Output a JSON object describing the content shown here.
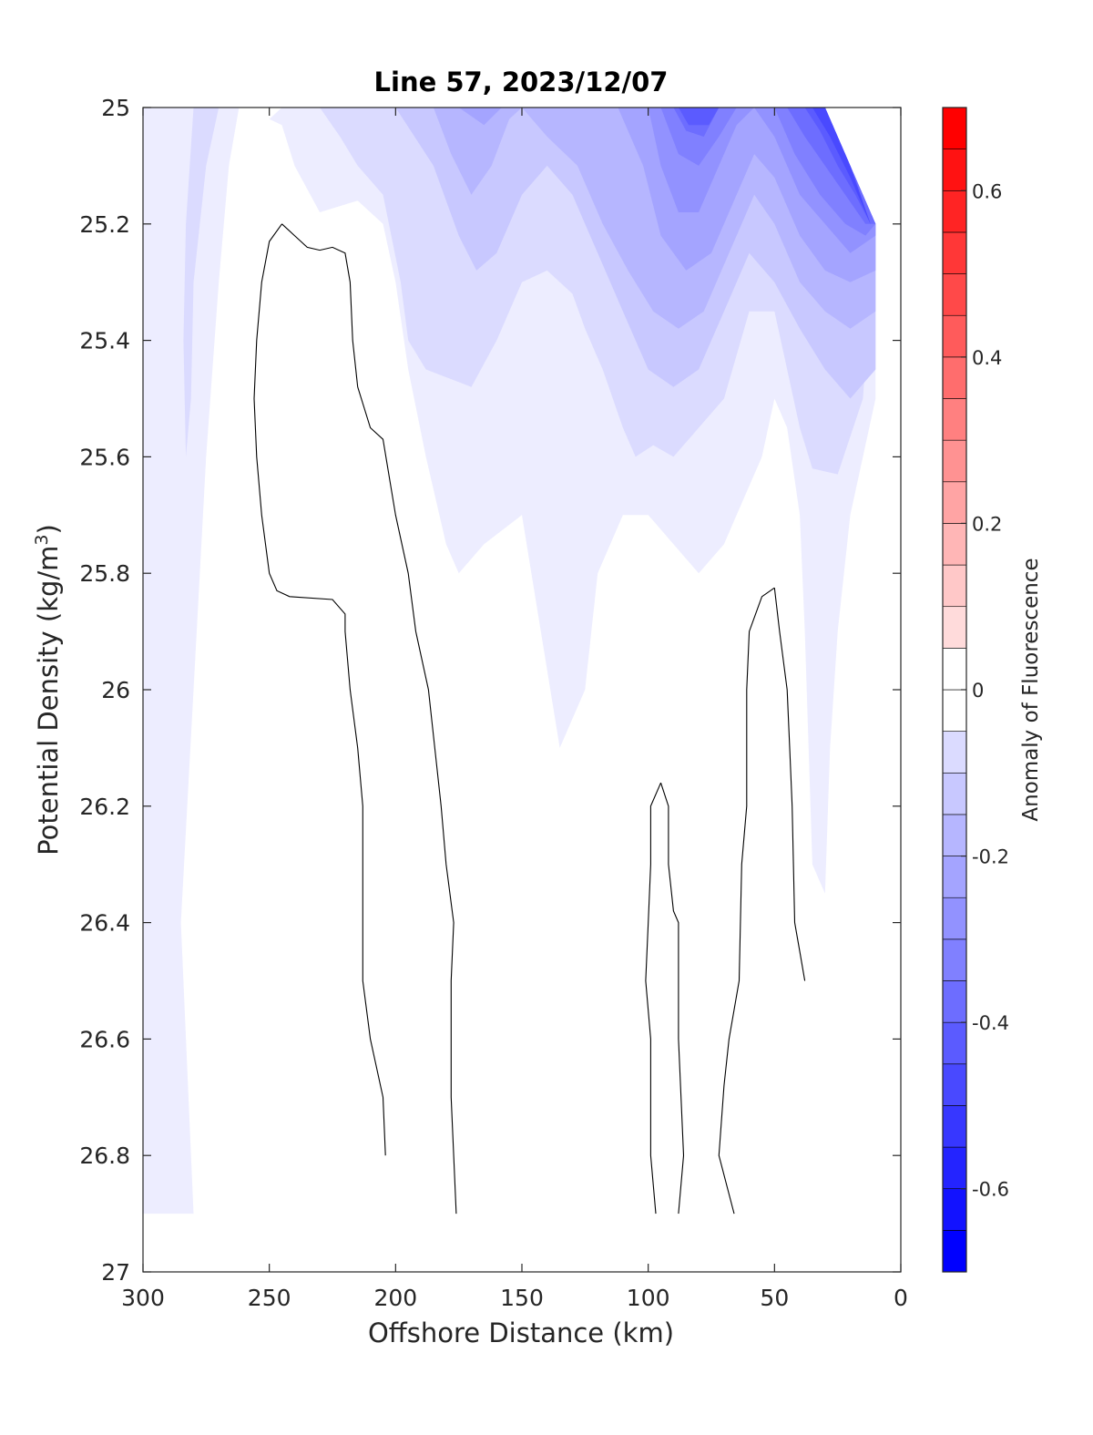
{
  "chart_data": {
    "type": "contourf",
    "title": "Line 57, 2023/12/07",
    "xlabel": "Offshore Distance (km)",
    "ylabel": "Potential Density (kg/m",
    "ylabel_sup": "3",
    "ylabel_close": ")",
    "colorbar_label": "Anomaly of Fluorescence",
    "x_axis": {
      "range": [
        300,
        0
      ],
      "reversed": true,
      "ticks": [
        300,
        250,
        200,
        150,
        100,
        50,
        0
      ],
      "tick_labels": [
        "300",
        "250",
        "200",
        "150",
        "100",
        "50",
        "0"
      ]
    },
    "y_axis": {
      "range": [
        25,
        27
      ],
      "reversed": true,
      "ticks": [
        25,
        25.2,
        25.4,
        25.6,
        25.8,
        26,
        26.2,
        26.4,
        26.6,
        26.8,
        27
      ],
      "tick_labels": [
        "25",
        "25.2",
        "25.4",
        "25.6",
        "25.8",
        "26",
        "26.2",
        "26.4",
        "26.6",
        "26.8",
        "27"
      ]
    },
    "colorbar": {
      "range": [
        -0.7,
        0.7
      ],
      "levels": [
        -0.7,
        -0.65,
        -0.6,
        -0.55,
        -0.5,
        -0.45,
        -0.4,
        -0.35,
        -0.3,
        -0.25,
        -0.2,
        -0.15,
        -0.1,
        -0.05,
        0,
        0.05,
        0.1,
        0.15,
        0.2,
        0.25,
        0.3,
        0.35,
        0.4,
        0.45,
        0.5,
        0.55,
        0.6,
        0.65,
        0.7
      ],
      "ticks": [
        -0.6,
        -0.4,
        -0.2,
        0,
        0.2,
        0.4,
        0.6
      ],
      "tick_labels": [
        "-0.6",
        "-0.4",
        "-0.2",
        "0",
        "0.2",
        "0.4",
        "0.6"
      ],
      "colormap": "blue-white-red"
    },
    "filled_regions": [
      {
        "level": -0.05,
        "points": [
          [
            285,
            25
          ],
          [
            262,
            25
          ],
          [
            266,
            25.1
          ],
          [
            270,
            25.3
          ],
          [
            275,
            25.6
          ],
          [
            280,
            26
          ],
          [
            285,
            26.4
          ],
          [
            280,
            26.9
          ],
          [
            300,
            26.9
          ],
          [
            300,
            25
          ]
        ]
      },
      {
        "level": -0.05,
        "points": [
          [
            250,
            25.02
          ],
          [
            245,
            25.03
          ],
          [
            240,
            25.1
          ],
          [
            230,
            25.18
          ],
          [
            215,
            25.16
          ],
          [
            205,
            25.2
          ],
          [
            200,
            25.3
          ],
          [
            195,
            25.45
          ],
          [
            188,
            25.6
          ],
          [
            180,
            25.75
          ],
          [
            175,
            25.8
          ],
          [
            165,
            25.75
          ],
          [
            150,
            25.7
          ],
          [
            135,
            26.1
          ],
          [
            125,
            26
          ],
          [
            120,
            25.8
          ],
          [
            110,
            25.7
          ],
          [
            100,
            25.7
          ],
          [
            90,
            25.75
          ],
          [
            80,
            25.8
          ],
          [
            70,
            25.75
          ],
          [
            65,
            25.7
          ],
          [
            55,
            25.6
          ],
          [
            50,
            25.5
          ],
          [
            45,
            25.55
          ],
          [
            40,
            25.7
          ],
          [
            38,
            25.9
          ],
          [
            35,
            26.3
          ],
          [
            30,
            26.35
          ],
          [
            28,
            26.1
          ],
          [
            25,
            25.9
          ],
          [
            20,
            25.7
          ],
          [
            15,
            25.6
          ],
          [
            10,
            25.5
          ],
          [
            10,
            25.2
          ],
          [
            20,
            25.1
          ],
          [
            30,
            25
          ],
          [
            245,
            25
          ]
        ]
      },
      {
        "level": -0.1,
        "points": [
          [
            270,
            25
          ],
          [
            280,
            25
          ],
          [
            283,
            25.2
          ],
          [
            284,
            25.4
          ],
          [
            283,
            25.6
          ],
          [
            281,
            25.5
          ],
          [
            280,
            25.3
          ],
          [
            275,
            25.1
          ]
        ]
      },
      {
        "level": -0.1,
        "points": [
          [
            230,
            25
          ],
          [
            222,
            25.05
          ],
          [
            215,
            25.1
          ],
          [
            205,
            25.15
          ],
          [
            198,
            25.3
          ],
          [
            195,
            25.4
          ],
          [
            188,
            25.45
          ],
          [
            170,
            25.48
          ],
          [
            160,
            25.4
          ],
          [
            155,
            25.35
          ],
          [
            150,
            25.3
          ],
          [
            140,
            25.28
          ],
          [
            130,
            25.32
          ],
          [
            125,
            25.38
          ],
          [
            118,
            25.45
          ],
          [
            110,
            25.55
          ],
          [
            105,
            25.6
          ],
          [
            98,
            25.58
          ],
          [
            90,
            25.6
          ],
          [
            80,
            25.55
          ],
          [
            70,
            25.5
          ],
          [
            60,
            25.35
          ],
          [
            50,
            25.35
          ],
          [
            45,
            25.45
          ],
          [
            40,
            25.55
          ],
          [
            35,
            25.62
          ],
          [
            25,
            25.63
          ],
          [
            15,
            25.5
          ],
          [
            10,
            25.2
          ],
          [
            20,
            25.1
          ],
          [
            30,
            25
          ]
        ]
      },
      {
        "level": -0.15,
        "points": [
          [
            200,
            25
          ],
          [
            185,
            25.1
          ],
          [
            175,
            25.22
          ],
          [
            168,
            25.28
          ],
          [
            160,
            25.25
          ],
          [
            150,
            25.15
          ],
          [
            140,
            25.1
          ],
          [
            130,
            25.15
          ],
          [
            120,
            25.25
          ],
          [
            110,
            25.35
          ],
          [
            100,
            25.45
          ],
          [
            90,
            25.48
          ],
          [
            80,
            25.45
          ],
          [
            70,
            25.35
          ],
          [
            60,
            25.25
          ],
          [
            50,
            25.3
          ],
          [
            40,
            25.38
          ],
          [
            30,
            25.45
          ],
          [
            20,
            25.5
          ],
          [
            10,
            25.45
          ],
          [
            10,
            25.2
          ],
          [
            20,
            25.1
          ],
          [
            30,
            25
          ]
        ]
      },
      {
        "level": -0.2,
        "points": [
          [
            185,
            25
          ],
          [
            178,
            25.08
          ],
          [
            170,
            25.15
          ],
          [
            162,
            25.1
          ],
          [
            155,
            25.02
          ],
          [
            150,
            25
          ],
          [
            140,
            25.05
          ],
          [
            128,
            25.1
          ],
          [
            118,
            25.2
          ],
          [
            108,
            25.28
          ],
          [
            98,
            25.35
          ],
          [
            88,
            25.38
          ],
          [
            78,
            25.35
          ],
          [
            68,
            25.25
          ],
          [
            58,
            25.15
          ],
          [
            50,
            25.2
          ],
          [
            40,
            25.3
          ],
          [
            30,
            25.35
          ],
          [
            20,
            25.38
          ],
          [
            10,
            25.35
          ],
          [
            10,
            25.2
          ],
          [
            20,
            25.1
          ],
          [
            30,
            25
          ]
        ]
      },
      {
        "level": -0.25,
        "points": [
          [
            175,
            25
          ],
          [
            165,
            25.03
          ],
          [
            158,
            25
          ],
          [
            112,
            25
          ],
          [
            102,
            25.1
          ],
          [
            95,
            25.22
          ],
          [
            85,
            25.28
          ],
          [
            75,
            25.25
          ],
          [
            65,
            25.15
          ],
          [
            58,
            25.08
          ],
          [
            50,
            25.12
          ],
          [
            40,
            25.22
          ],
          [
            30,
            25.28
          ],
          [
            20,
            25.3
          ],
          [
            10,
            25.28
          ],
          [
            10,
            25.2
          ],
          [
            20,
            25.1
          ],
          [
            30,
            25
          ]
        ]
      },
      {
        "level": -0.3,
        "points": [
          [
            100,
            25
          ],
          [
            95,
            25.1
          ],
          [
            88,
            25.18
          ],
          [
            80,
            25.18
          ],
          [
            72,
            25.1
          ],
          [
            65,
            25.03
          ],
          [
            58,
            25
          ],
          [
            50,
            25.05
          ],
          [
            40,
            25.15
          ],
          [
            30,
            25.2
          ],
          [
            20,
            25.25
          ],
          [
            10,
            25.22
          ],
          [
            10,
            25.2
          ],
          [
            20,
            25.1
          ],
          [
            30,
            25
          ]
        ]
      },
      {
        "level": -0.35,
        "points": [
          [
            95,
            25
          ],
          [
            88,
            25.08
          ],
          [
            80,
            25.1
          ],
          [
            72,
            25.05
          ],
          [
            65,
            25
          ],
          [
            50,
            25
          ],
          [
            42,
            25.08
          ],
          [
            32,
            25.15
          ],
          [
            22,
            25.2
          ],
          [
            14,
            25.22
          ],
          [
            10,
            25.2
          ],
          [
            20,
            25.1
          ],
          [
            30,
            25
          ]
        ]
      },
      {
        "level": -0.4,
        "points": [
          [
            90,
            25
          ],
          [
            85,
            25.04
          ],
          [
            78,
            25.05
          ],
          [
            72,
            25
          ],
          [
            45,
            25
          ],
          [
            38,
            25.05
          ],
          [
            30,
            25.1
          ],
          [
            22,
            25.15
          ],
          [
            14,
            25.2
          ],
          [
            10,
            25.2
          ],
          [
            20,
            25.1
          ],
          [
            30,
            25
          ]
        ]
      },
      {
        "level": -0.45,
        "points": [
          [
            88,
            25
          ],
          [
            84,
            25.03
          ],
          [
            76,
            25.03
          ],
          [
            72,
            25
          ],
          [
            38,
            25
          ],
          [
            32,
            25.04
          ],
          [
            25,
            25.1
          ],
          [
            18,
            25.15
          ],
          [
            12,
            25.2
          ],
          [
            20,
            25.1
          ],
          [
            30,
            25
          ]
        ]
      },
      {
        "level": -0.5,
        "points": [
          [
            35,
            25
          ],
          [
            28,
            25.05
          ],
          [
            20,
            25.12
          ],
          [
            12,
            25.2
          ],
          [
            20,
            25.1
          ],
          [
            30,
            25
          ]
        ]
      }
    ],
    "zero_contours": [
      {
        "points": [
          [
            245,
            25.2
          ],
          [
            240,
            25.22
          ],
          [
            235,
            25.24
          ],
          [
            230,
            25.245
          ],
          [
            225,
            25.24
          ],
          [
            220,
            25.25
          ],
          [
            218,
            25.3
          ],
          [
            217,
            25.4
          ],
          [
            215,
            25.48
          ],
          [
            210,
            25.55
          ],
          [
            205,
            25.57
          ],
          [
            200,
            25.7
          ],
          [
            195,
            25.8
          ],
          [
            192,
            25.9
          ],
          [
            187,
            26
          ],
          [
            182,
            26.2
          ],
          [
            180,
            26.3
          ],
          [
            177,
            26.4
          ],
          [
            178,
            26.5
          ],
          [
            178,
            26.7
          ],
          [
            176,
            26.9
          ]
        ]
      },
      {
        "points": [
          [
            245,
            25.2
          ],
          [
            250,
            25.23
          ],
          [
            253,
            25.3
          ],
          [
            255,
            25.4
          ],
          [
            256,
            25.5
          ],
          [
            255,
            25.6
          ],
          [
            253,
            25.7
          ],
          [
            250,
            25.8
          ],
          [
            247,
            25.83
          ],
          [
            242,
            25.84
          ],
          [
            225,
            25.845
          ],
          [
            220,
            25.87
          ],
          [
            220,
            25.9
          ],
          [
            218,
            26
          ],
          [
            215,
            26.1
          ],
          [
            213,
            26.2
          ],
          [
            213,
            26.3
          ],
          [
            213,
            26.4
          ],
          [
            213,
            26.5
          ],
          [
            210,
            26.6
          ],
          [
            205,
            26.7
          ],
          [
            204,
            26.8
          ]
        ]
      },
      {
        "points": [
          [
            95,
            26.16
          ],
          [
            92,
            26.2
          ],
          [
            92,
            26.3
          ],
          [
            90,
            26.38
          ],
          [
            88,
            26.4
          ],
          [
            88,
            26.6
          ],
          [
            87,
            26.7
          ],
          [
            86,
            26.8
          ],
          [
            88,
            26.9
          ]
        ]
      },
      {
        "points": [
          [
            95,
            26.16
          ],
          [
            99,
            26.2
          ],
          [
            99,
            26.3
          ],
          [
            100,
            26.4
          ],
          [
            101,
            26.5
          ],
          [
            99,
            26.6
          ],
          [
            99,
            26.8
          ],
          [
            97,
            26.9
          ]
        ]
      },
      {
        "points": [
          [
            50,
            25.825
          ],
          [
            55,
            25.84
          ],
          [
            60,
            25.9
          ],
          [
            61,
            26
          ],
          [
            61,
            26.2
          ],
          [
            63,
            26.3
          ],
          [
            64,
            26.5
          ],
          [
            68,
            26.6
          ],
          [
            70,
            26.68
          ],
          [
            72,
            26.8
          ],
          [
            66,
            26.9
          ]
        ]
      },
      {
        "points": [
          [
            50,
            25.825
          ],
          [
            48,
            25.9
          ],
          [
            45,
            26
          ],
          [
            44,
            26.1
          ],
          [
            43,
            26.2
          ],
          [
            42,
            26.4
          ],
          [
            40,
            26.45
          ],
          [
            38,
            26.5
          ]
        ]
      }
    ]
  }
}
